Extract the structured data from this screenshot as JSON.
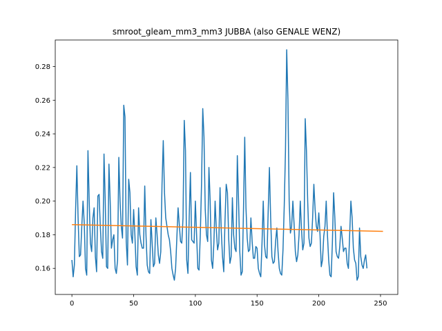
{
  "chart_data": {
    "type": "line",
    "title": "smroot_gleam_mm3_mm3 JUBBA (also GENALE WENZ)",
    "xlabel": "",
    "ylabel": "",
    "xlim": [
      -13.5,
      264
    ],
    "ylim": [
      0.1445,
      0.2958
    ],
    "xticks": [
      0,
      50,
      100,
      150,
      200,
      250
    ],
    "yticks": [
      0.16,
      0.18,
      0.2,
      0.22,
      0.24,
      0.26,
      0.28
    ],
    "ytick_labels": [
      "0.16",
      "0.18",
      "0.20",
      "0.22",
      "0.24",
      "0.26",
      "0.28"
    ],
    "grid": false,
    "series": [
      {
        "color": "#1f77b4",
        "x_start": 0,
        "values": [
          0.165,
          0.155,
          0.162,
          0.195,
          0.221,
          0.19,
          0.167,
          0.168,
          0.185,
          0.2,
          0.187,
          0.16,
          0.156,
          0.23,
          0.2,
          0.175,
          0.17,
          0.19,
          0.196,
          0.167,
          0.158,
          0.203,
          0.204,
          0.185,
          0.17,
          0.166,
          0.228,
          0.2,
          0.161,
          0.16,
          0.222,
          0.2,
          0.172,
          0.177,
          0.18,
          0.16,
          0.157,
          0.165,
          0.226,
          0.2,
          0.185,
          0.178,
          0.257,
          0.25,
          0.176,
          0.162,
          0.213,
          0.205,
          0.18,
          0.175,
          0.195,
          0.18,
          0.161,
          0.156,
          0.196,
          0.18,
          0.175,
          0.172,
          0.172,
          0.209,
          0.18,
          0.162,
          0.158,
          0.157,
          0.189,
          0.175,
          0.161,
          0.163,
          0.19,
          0.18,
          0.168,
          0.163,
          0.17,
          0.21,
          0.236,
          0.205,
          0.19,
          0.185,
          0.18,
          0.177,
          0.17,
          0.16,
          0.156,
          0.153,
          0.16,
          0.178,
          0.196,
          0.186,
          0.176,
          0.175,
          0.19,
          0.248,
          0.23,
          0.165,
          0.157,
          0.19,
          0.217,
          0.177,
          0.176,
          0.175,
          0.2,
          0.18,
          0.16,
          0.159,
          0.18,
          0.21,
          0.255,
          0.238,
          0.195,
          0.18,
          0.176,
          0.22,
          0.2,
          0.165,
          0.16,
          0.175,
          0.2,
          0.183,
          0.171,
          0.175,
          0.208,
          0.182,
          0.167,
          0.158,
          0.188,
          0.21,
          0.205,
          0.178,
          0.163,
          0.167,
          0.202,
          0.18,
          0.172,
          0.17,
          0.227,
          0.2,
          0.17,
          0.156,
          0.158,
          0.195,
          0.238,
          0.196,
          0.178,
          0.17,
          0.171,
          0.19,
          0.176,
          0.166,
          0.166,
          0.173,
          0.172,
          0.16,
          0.157,
          0.155,
          0.175,
          0.2,
          0.174,
          0.167,
          0.166,
          0.194,
          0.22,
          0.19,
          0.167,
          0.163,
          0.164,
          0.176,
          0.184,
          0.17,
          0.16,
          0.157,
          0.156,
          0.171,
          0.197,
          0.23,
          0.29,
          0.26,
          0.2,
          0.181,
          0.185,
          0.2,
          0.186,
          0.17,
          0.164,
          0.168,
          0.18,
          0.2,
          0.183,
          0.171,
          0.175,
          0.249,
          0.23,
          0.2,
          0.178,
          0.173,
          0.175,
          0.19,
          0.21,
          0.195,
          0.185,
          0.182,
          0.193,
          0.18,
          0.161,
          0.165,
          0.179,
          0.185,
          0.2,
          0.18,
          0.165,
          0.156,
          0.155,
          0.175,
          0.205,
          0.19,
          0.17,
          0.167,
          0.166,
          0.173,
          0.185,
          0.178,
          0.17,
          0.172,
          0.172,
          0.163,
          0.16,
          0.18,
          0.2,
          0.19,
          0.172,
          0.165,
          0.163,
          0.153,
          0.155,
          0.184,
          0.167,
          0.162,
          0.16,
          0.165,
          0.168,
          0.16
        ]
      },
      {
        "color": "#ff7f0e",
        "x": [
          0,
          252
        ],
        "values": [
          0.186,
          0.182
        ]
      }
    ]
  }
}
